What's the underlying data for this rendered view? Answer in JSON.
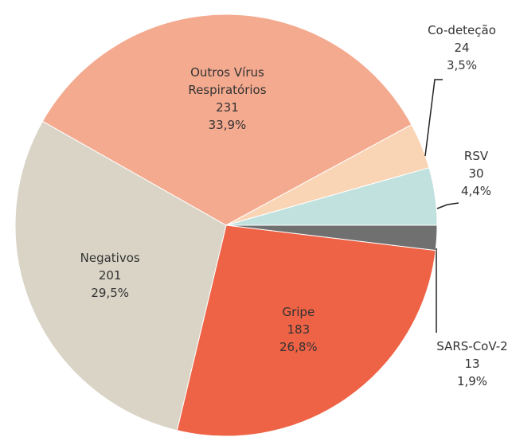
{
  "chart_data": {
    "type": "pie",
    "categories": [
      "SARS-CoV-2",
      "Gripe",
      "Negativos",
      "Outros Vírus Respiratórios",
      "Co-deteção",
      "RSV"
    ],
    "values": [
      13,
      183,
      201,
      231,
      24,
      30
    ],
    "percent_labels": [
      "1,9%",
      "26,8%",
      "29,5%",
      "33,9%",
      "3,5%",
      "4,4%"
    ],
    "colors": [
      "#707070",
      "#ee6245",
      "#d9d4c6",
      "#f4aa8f",
      "#f9d5b6",
      "#c0e1de"
    ]
  }
}
